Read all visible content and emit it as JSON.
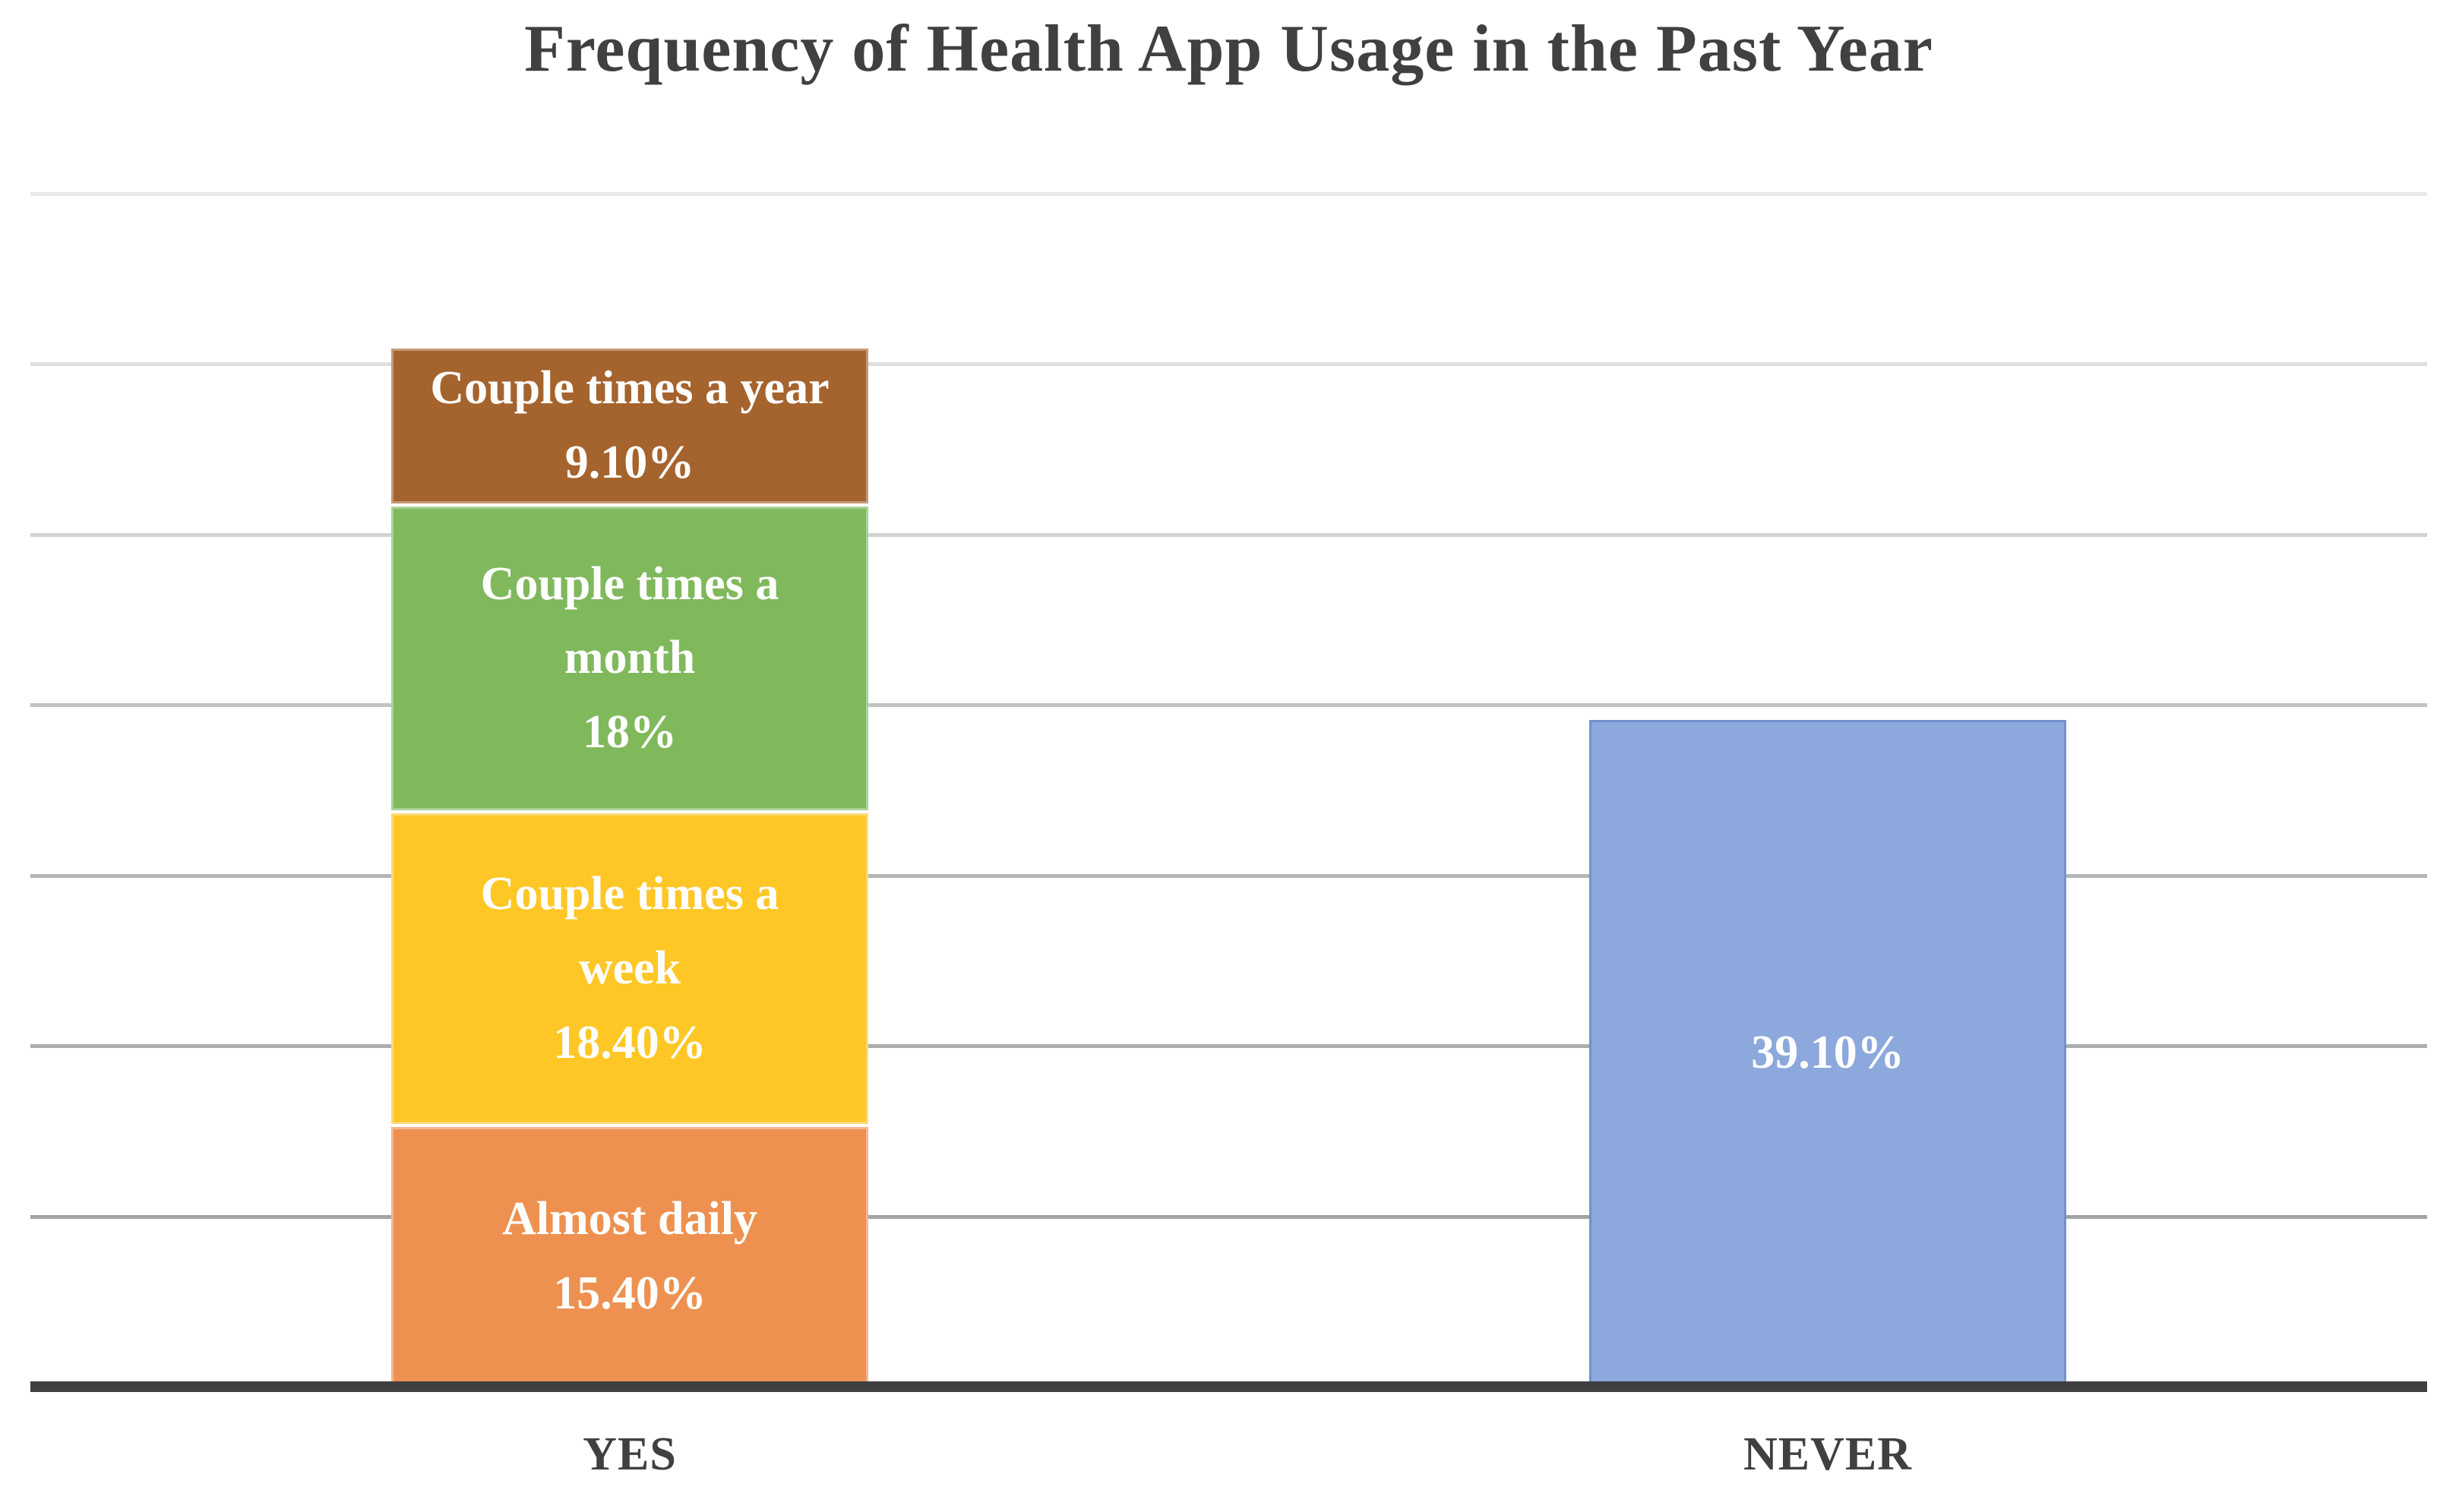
{
  "page": {
    "background_color": "#FFFFFF"
  },
  "chart_data": {
    "type": "bar",
    "subtype": "stacked-column",
    "title": "Frequency of Health App Usage in the Past Year",
    "title_color": "#404040",
    "categories": [
      "YES",
      "NEVER"
    ],
    "bars": [
      {
        "category": "YES",
        "segments": [
          {
            "name": "Almost daily",
            "value": 15.4,
            "label_lines": [
              "Almost daily"
            ],
            "value_label": "15.40%",
            "color": "#EE9150"
          },
          {
            "name": "Couple times a week",
            "value": 18.4,
            "label_lines": [
              "Couple times a",
              "week"
            ],
            "value_label": "18.40%",
            "color": "#FFC726"
          },
          {
            "name": "Couple times a month",
            "value": 18,
            "label_lines": [
              "Couple times a",
              "month"
            ],
            "value_label": "18%",
            "color": "#80B85C"
          },
          {
            "name": "Couple times a year",
            "value": 9.1,
            "label_lines": [
              "Couple times a year"
            ],
            "value_label": "9.10%",
            "color": "#A5632D"
          }
        ]
      },
      {
        "category": "NEVER",
        "segments": [
          {
            "name": "Never",
            "value": 39.1,
            "label_lines": [],
            "value_label": "39.10%",
            "color": "#8CA8DC",
            "border_color": "#7291CC"
          }
        ]
      }
    ],
    "xlabel": "",
    "ylabel": "",
    "ylim": [
      0,
      70
    ],
    "gridline_step": 10,
    "gridlines_percent": [
      10,
      20,
      30,
      40,
      50,
      60,
      70
    ],
    "gridline_colors": [
      "#A3A3A3",
      "#ACACAC",
      "#B5B5B5",
      "#C3C3C3",
      "#D2D2D2",
      "#DEDEDE",
      "#E9E9E9"
    ],
    "grid": true,
    "legend": "none",
    "axis_color": "#3F3F3F",
    "tick_label_color": "#404040",
    "segment_text_color": "#FFFFFF",
    "y_axis_tick_labels_shown": false
  }
}
